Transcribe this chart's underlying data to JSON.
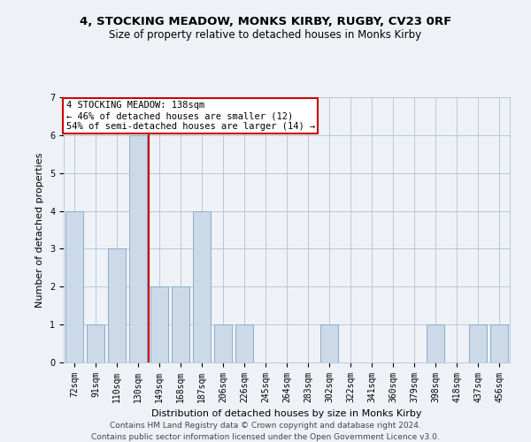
{
  "title": "4, STOCKING MEADOW, MONKS KIRBY, RUGBY, CV23 0RF",
  "subtitle": "Size of property relative to detached houses in Monks Kirby",
  "xlabel": "Distribution of detached houses by size in Monks Kirby",
  "ylabel": "Number of detached properties",
  "categories": [
    "72sqm",
    "91sqm",
    "110sqm",
    "130sqm",
    "149sqm",
    "168sqm",
    "187sqm",
    "206sqm",
    "226sqm",
    "245sqm",
    "264sqm",
    "283sqm",
    "302sqm",
    "322sqm",
    "341sqm",
    "360sqm",
    "379sqm",
    "398sqm",
    "418sqm",
    "437sqm",
    "456sqm"
  ],
  "values": [
    4,
    1,
    3,
    6,
    2,
    2,
    4,
    1,
    1,
    0,
    0,
    0,
    1,
    0,
    0,
    0,
    0,
    1,
    0,
    1,
    1
  ],
  "bar_color": "#ccd9e8",
  "bar_edge_color": "#8aaec8",
  "subject_bar_index": 3,
  "subject_label": "4 STOCKING MEADOW: 138sqm",
  "smaller_pct": "46%",
  "smaller_count": 12,
  "larger_pct": "54%",
  "larger_count": 14,
  "annotation_box_color": "#ffffff",
  "annotation_box_edge_color": "#cc0000",
  "subject_line_color": "#cc0000",
  "ylim": [
    0,
    7
  ],
  "yticks": [
    0,
    1,
    2,
    3,
    4,
    5,
    6,
    7
  ],
  "footer1": "Contains HM Land Registry data © Crown copyright and database right 2024.",
  "footer2": "Contains public sector information licensed under the Open Government Licence v3.0.",
  "bg_color": "#eef2f7",
  "grid_color": "#b8c8d8",
  "title_fontsize": 9.5,
  "subtitle_fontsize": 8.5,
  "ylabel_fontsize": 8,
  "xlabel_fontsize": 8,
  "tick_fontsize": 7,
  "annotation_fontsize": 7.5,
  "footer_fontsize": 6.5
}
